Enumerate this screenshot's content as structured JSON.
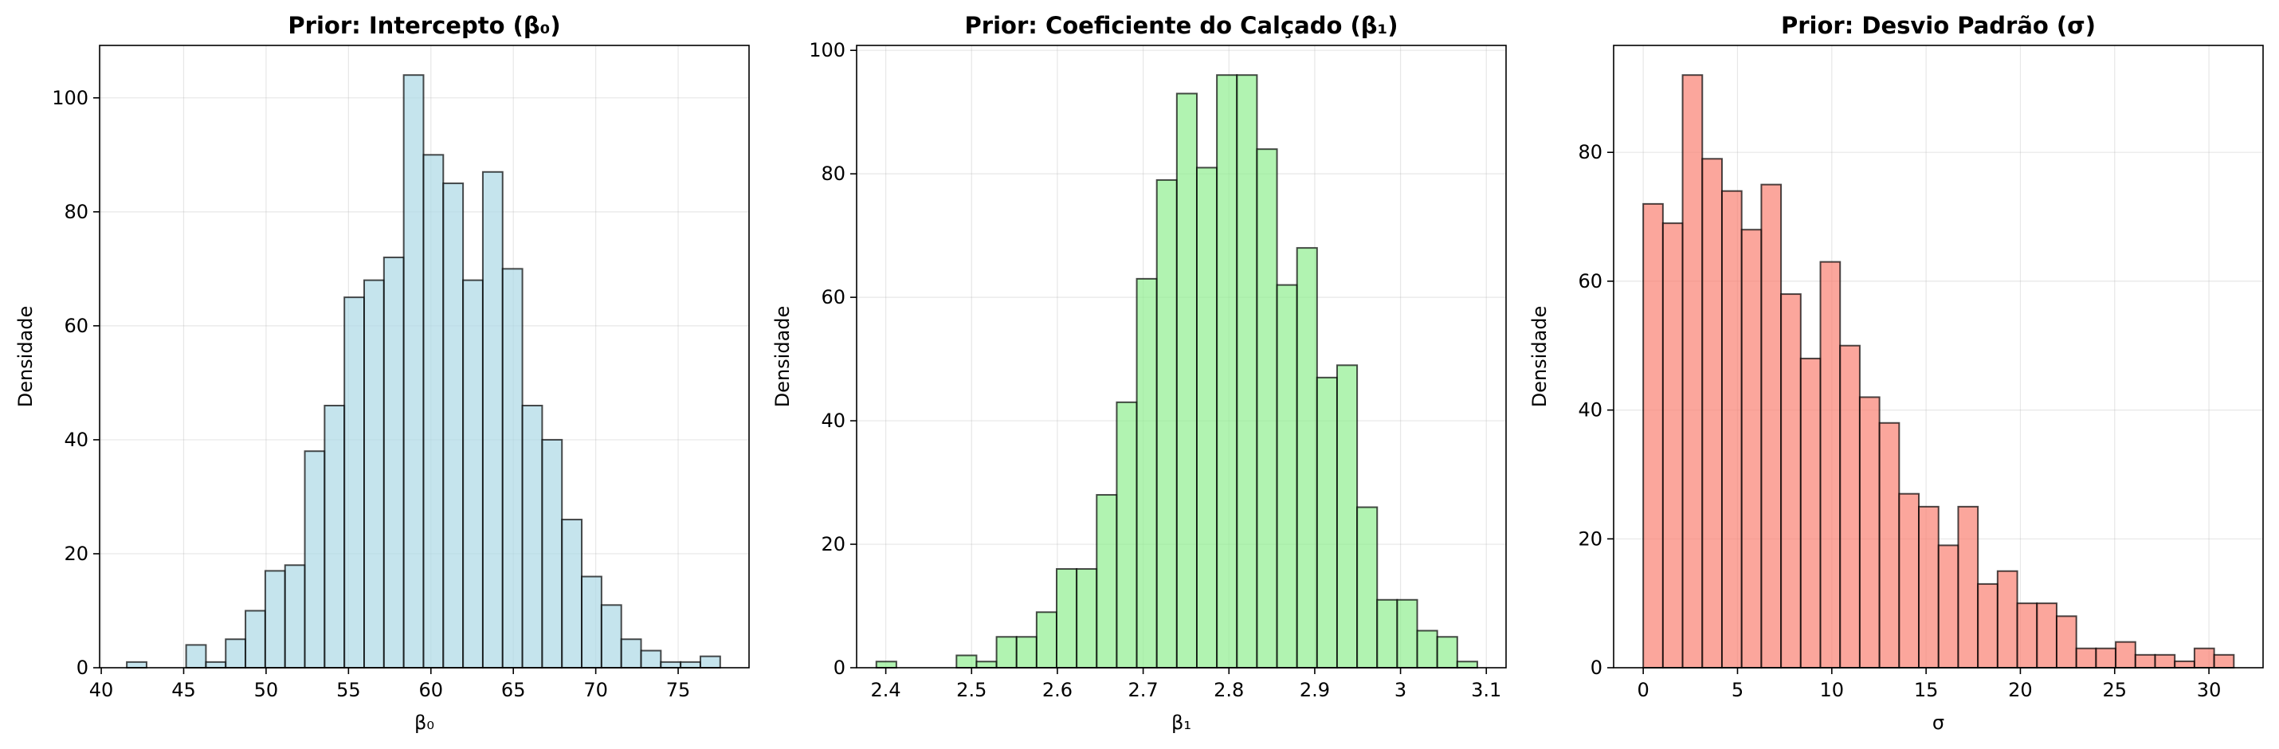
{
  "chart_data": [
    {
      "type": "bar",
      "title": "Prior: Intercepto (β₀)",
      "xlabel": "β₀",
      "ylabel": "Densidade",
      "xlim": [
        39.9,
        79.3
      ],
      "ylim": [
        0,
        109.2
      ],
      "xticks": [
        40,
        45,
        50,
        55,
        60,
        65,
        70,
        75
      ],
      "yticks": [
        0,
        20,
        40,
        60,
        80,
        100
      ],
      "grid": true,
      "color": "#add8e6",
      "bin_start": 41.55,
      "bin_width": 1.2,
      "values": [
        1,
        0,
        0,
        4,
        1,
        5,
        10,
        17,
        18,
        38,
        46,
        65,
        68,
        72,
        104,
        90,
        85,
        68,
        87,
        70,
        46,
        40,
        26,
        16,
        11,
        5,
        3,
        1,
        1,
        2
      ]
    },
    {
      "type": "bar",
      "title": "Prior: Coeficiente do Calçado (β₁)",
      "xlabel": "β₁",
      "ylabel": "Densidade",
      "xlim": [
        2.366,
        3.123
      ],
      "ylim": [
        0,
        100.8
      ],
      "xticks": [
        2.4,
        2.5,
        2.6,
        2.7,
        2.8,
        2.9,
        3.0,
        3.1
      ],
      "yticks": [
        0,
        20,
        40,
        60,
        80,
        100
      ],
      "grid": true,
      "color": "#90ee90",
      "bin_start": 2.389,
      "bin_width": 0.02335,
      "values": [
        1,
        0,
        0,
        0,
        2,
        1,
        5,
        5,
        9,
        16,
        16,
        28,
        43,
        63,
        79,
        93,
        81,
        96,
        96,
        84,
        62,
        68,
        47,
        49,
        26,
        11,
        11,
        6,
        5,
        1
      ]
    },
    {
      "type": "bar",
      "title": "Prior: Desvio Padrão (σ)",
      "xlabel": "σ",
      "ylabel": "Densidade",
      "xlim": [
        -1.57,
        32.87
      ],
      "ylim": [
        0,
        96.6
      ],
      "xticks": [
        0,
        5,
        10,
        15,
        20,
        25,
        30
      ],
      "yticks": [
        0,
        20,
        40,
        60,
        80
      ],
      "grid": true,
      "color": "#fa8072",
      "bin_start": 0.0,
      "bin_width": 1.044,
      "values": [
        72,
        69,
        92,
        79,
        74,
        68,
        75,
        58,
        48,
        63,
        50,
        42,
        38,
        27,
        25,
        19,
        25,
        13,
        15,
        10,
        10,
        8,
        3,
        3,
        4,
        2,
        2,
        1,
        3,
        2
      ]
    }
  ]
}
